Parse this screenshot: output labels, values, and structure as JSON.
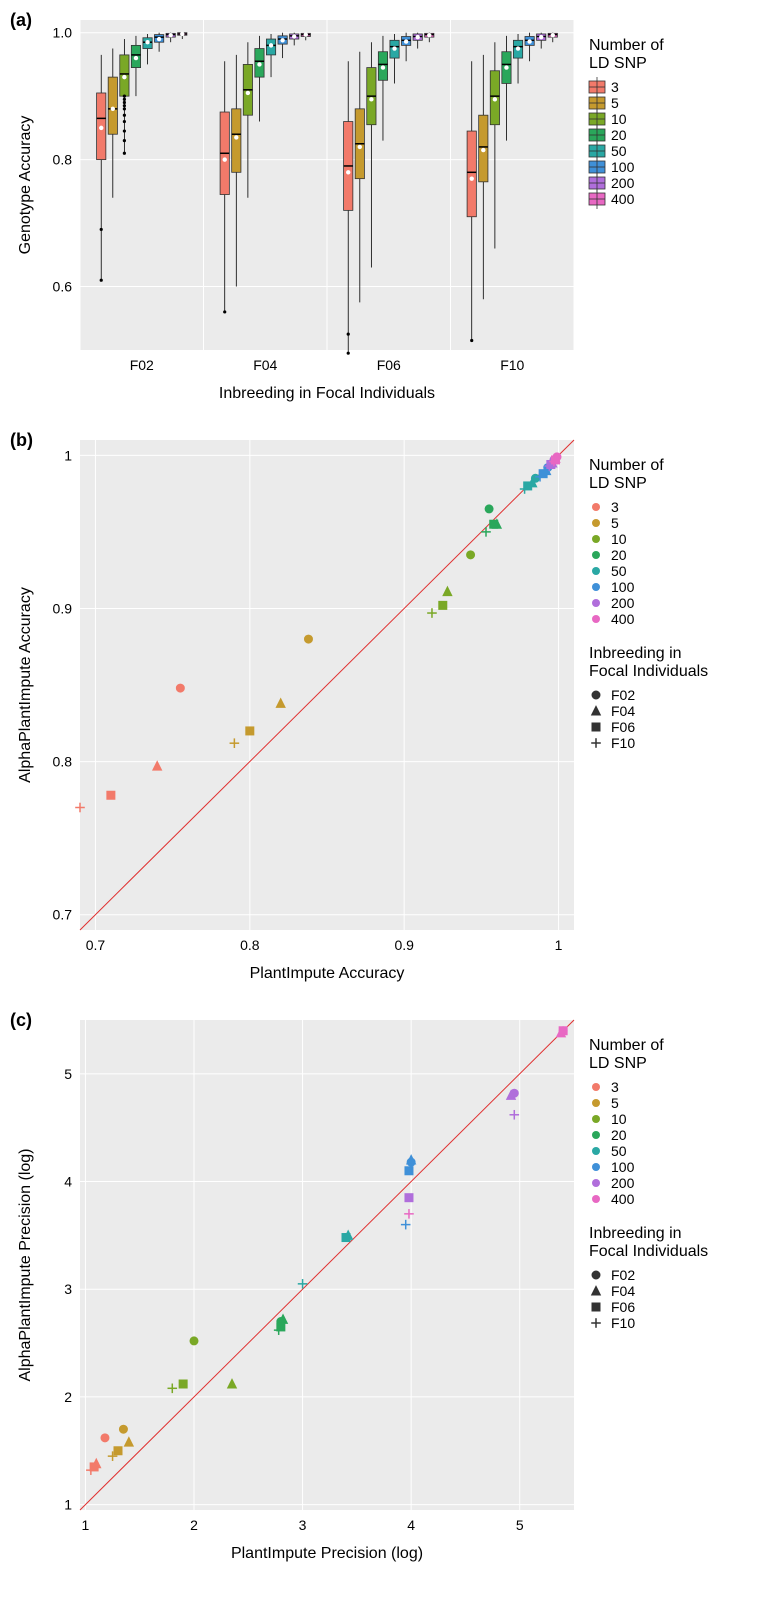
{
  "colors": {
    "snp": {
      "3": "#f27a6a",
      "5": "#c59a2e",
      "10": "#7aa826",
      "20": "#2aa75b",
      "50": "#2aa8a4",
      "100": "#3f90d8",
      "200": "#b06edb",
      "400": "#e868c3"
    },
    "plot_bg": "#ebebeb",
    "grid": "#ffffff",
    "text": "#333333",
    "diag": "#e03030"
  },
  "legend_snp_title": "Number of\nLD SNP",
  "legend_snp_labels": [
    "3",
    "5",
    "10",
    "20",
    "50",
    "100",
    "200",
    "400"
  ],
  "legend_shape_title": "Inbreeding in\nFocal Individuals",
  "legend_shape_labels": [
    "F02",
    "F04",
    "F06",
    "F10"
  ],
  "panel_a": {
    "label": "(a)",
    "x_title": "Inbreeding in Focal Individuals",
    "y_title": "Genotype Accuracy",
    "x_categories": [
      "F02",
      "F04",
      "F06",
      "F10"
    ],
    "ylim": [
      0.5,
      1.02
    ],
    "yticks": [
      0.6,
      0.8,
      1.0
    ],
    "groups": {
      "F02": {
        "3": {
          "low": 0.61,
          "q1": 0.8,
          "med": 0.865,
          "q3": 0.905,
          "high": 0.965,
          "mean": 0.85,
          "out": [
            0.61,
            0.69
          ]
        },
        "5": {
          "low": 0.74,
          "q1": 0.84,
          "med": 0.88,
          "q3": 0.93,
          "high": 0.975,
          "mean": 0.88,
          "out": []
        },
        "10": {
          "low": 0.81,
          "q1": 0.9,
          "med": 0.935,
          "q3": 0.965,
          "high": 0.99,
          "mean": 0.93,
          "out": [
            0.81,
            0.83,
            0.845,
            0.86,
            0.87,
            0.88,
            0.885,
            0.89,
            0.895,
            0.9
          ]
        },
        "20": {
          "low": 0.9,
          "q1": 0.945,
          "med": 0.965,
          "q3": 0.98,
          "high": 0.995,
          "mean": 0.96,
          "out": []
        },
        "50": {
          "low": 0.95,
          "q1": 0.975,
          "med": 0.985,
          "q3": 0.992,
          "high": 0.998,
          "mean": 0.985,
          "out": []
        },
        "100": {
          "low": 0.97,
          "q1": 0.985,
          "med": 0.993,
          "q3": 0.997,
          "high": 1.0,
          "mean": 0.99,
          "out": []
        },
        "200": {
          "low": 0.985,
          "q1": 0.993,
          "med": 0.997,
          "q3": 0.999,
          "high": 1.0,
          "mean": 0.996,
          "out": []
        },
        "400": {
          "low": 0.99,
          "q1": 0.996,
          "med": 0.998,
          "q3": 1.0,
          "high": 1.0,
          "mean": 0.998,
          "out": []
        }
      },
      "F04": {
        "3": {
          "low": 0.56,
          "q1": 0.745,
          "med": 0.81,
          "q3": 0.875,
          "high": 0.955,
          "mean": 0.8,
          "out": [
            0.56
          ]
        },
        "5": {
          "low": 0.6,
          "q1": 0.78,
          "med": 0.84,
          "q3": 0.88,
          "high": 0.965,
          "mean": 0.835,
          "out": []
        },
        "10": {
          "low": 0.74,
          "q1": 0.87,
          "med": 0.91,
          "q3": 0.95,
          "high": 0.985,
          "mean": 0.905,
          "out": []
        },
        "20": {
          "low": 0.86,
          "q1": 0.93,
          "med": 0.955,
          "q3": 0.975,
          "high": 0.995,
          "mean": 0.95,
          "out": []
        },
        "50": {
          "low": 0.93,
          "q1": 0.965,
          "med": 0.98,
          "q3": 0.99,
          "high": 0.998,
          "mean": 0.98,
          "out": []
        },
        "100": {
          "low": 0.96,
          "q1": 0.982,
          "med": 0.99,
          "q3": 0.995,
          "high": 1.0,
          "mean": 0.988,
          "out": []
        },
        "200": {
          "low": 0.98,
          "q1": 0.99,
          "med": 0.995,
          "q3": 0.998,
          "high": 1.0,
          "mean": 0.994,
          "out": []
        },
        "400": {
          "low": 0.988,
          "q1": 0.994,
          "med": 0.997,
          "q3": 0.999,
          "high": 1.0,
          "mean": 0.997,
          "out": []
        }
      },
      "F06": {
        "3": {
          "low": 0.495,
          "q1": 0.72,
          "med": 0.79,
          "q3": 0.86,
          "high": 0.955,
          "mean": 0.78,
          "out": [
            0.495,
            0.525
          ]
        },
        "5": {
          "low": 0.575,
          "q1": 0.77,
          "med": 0.825,
          "q3": 0.88,
          "high": 0.97,
          "mean": 0.82,
          "out": []
        },
        "10": {
          "low": 0.63,
          "q1": 0.855,
          "med": 0.9,
          "q3": 0.945,
          "high": 0.985,
          "mean": 0.895,
          "out": []
        },
        "20": {
          "low": 0.83,
          "q1": 0.925,
          "med": 0.95,
          "q3": 0.97,
          "high": 0.995,
          "mean": 0.945,
          "out": []
        },
        "50": {
          "low": 0.92,
          "q1": 0.96,
          "med": 0.978,
          "q3": 0.988,
          "high": 0.998,
          "mean": 0.975,
          "out": []
        },
        "100": {
          "low": 0.955,
          "q1": 0.98,
          "med": 0.988,
          "q3": 0.994,
          "high": 1.0,
          "mean": 0.986,
          "out": []
        },
        "200": {
          "low": 0.975,
          "q1": 0.988,
          "med": 0.994,
          "q3": 0.998,
          "high": 1.0,
          "mean": 0.993,
          "out": []
        },
        "400": {
          "low": 0.985,
          "q1": 0.993,
          "med": 0.997,
          "q3": 0.999,
          "high": 1.0,
          "mean": 0.996,
          "out": []
        }
      },
      "F10": {
        "3": {
          "low": 0.515,
          "q1": 0.71,
          "med": 0.78,
          "q3": 0.845,
          "high": 0.955,
          "mean": 0.77,
          "out": [
            0.515
          ]
        },
        "5": {
          "low": 0.58,
          "q1": 0.765,
          "med": 0.82,
          "q3": 0.87,
          "high": 0.965,
          "mean": 0.815,
          "out": []
        },
        "10": {
          "low": 0.66,
          "q1": 0.855,
          "med": 0.9,
          "q3": 0.94,
          "high": 0.985,
          "mean": 0.895,
          "out": []
        },
        "20": {
          "low": 0.83,
          "q1": 0.92,
          "med": 0.95,
          "q3": 0.97,
          "high": 0.995,
          "mean": 0.945,
          "out": []
        },
        "50": {
          "low": 0.92,
          "q1": 0.96,
          "med": 0.978,
          "q3": 0.988,
          "high": 0.998,
          "mean": 0.975,
          "out": []
        },
        "100": {
          "low": 0.955,
          "q1": 0.98,
          "med": 0.988,
          "q3": 0.994,
          "high": 1.0,
          "mean": 0.986,
          "out": []
        },
        "200": {
          "low": 0.975,
          "q1": 0.988,
          "med": 0.994,
          "q3": 0.998,
          "high": 1.0,
          "mean": 0.993,
          "out": []
        },
        "400": {
          "low": 0.985,
          "q1": 0.993,
          "med": 0.997,
          "q3": 0.999,
          "high": 1.0,
          "mean": 0.996,
          "out": []
        }
      }
    }
  },
  "panel_b": {
    "label": "(b)",
    "x_title": "PlantImpute Accuracy",
    "y_title": "AlphaPlantImpute Accuracy",
    "xlim": [
      0.69,
      1.01
    ],
    "ylim": [
      0.69,
      1.01
    ],
    "xticks": [
      0.7,
      0.8,
      0.9,
      1.0
    ],
    "yticks": [
      0.7,
      0.8,
      0.9,
      1.0
    ],
    "points": [
      {
        "x": 0.755,
        "y": 0.848,
        "snp": "3",
        "shape": "F02"
      },
      {
        "x": 0.74,
        "y": 0.797,
        "snp": "3",
        "shape": "F04"
      },
      {
        "x": 0.71,
        "y": 0.778,
        "snp": "3",
        "shape": "F06"
      },
      {
        "x": 0.69,
        "y": 0.77,
        "snp": "3",
        "shape": "F10"
      },
      {
        "x": 0.838,
        "y": 0.88,
        "snp": "5",
        "shape": "F02"
      },
      {
        "x": 0.82,
        "y": 0.838,
        "snp": "5",
        "shape": "F04"
      },
      {
        "x": 0.8,
        "y": 0.82,
        "snp": "5",
        "shape": "F06"
      },
      {
        "x": 0.79,
        "y": 0.812,
        "snp": "5",
        "shape": "F10"
      },
      {
        "x": 0.943,
        "y": 0.935,
        "snp": "10",
        "shape": "F02"
      },
      {
        "x": 0.928,
        "y": 0.911,
        "snp": "10",
        "shape": "F04"
      },
      {
        "x": 0.925,
        "y": 0.902,
        "snp": "10",
        "shape": "F06"
      },
      {
        "x": 0.918,
        "y": 0.897,
        "snp": "10",
        "shape": "F10"
      },
      {
        "x": 0.955,
        "y": 0.965,
        "snp": "20",
        "shape": "F02"
      },
      {
        "x": 0.96,
        "y": 0.955,
        "snp": "20",
        "shape": "F04"
      },
      {
        "x": 0.958,
        "y": 0.955,
        "snp": "20",
        "shape": "F06"
      },
      {
        "x": 0.953,
        "y": 0.95,
        "snp": "20",
        "shape": "F10"
      },
      {
        "x": 0.985,
        "y": 0.985,
        "snp": "50",
        "shape": "F02"
      },
      {
        "x": 0.983,
        "y": 0.982,
        "snp": "50",
        "shape": "F04"
      },
      {
        "x": 0.98,
        "y": 0.98,
        "snp": "50",
        "shape": "F06"
      },
      {
        "x": 0.978,
        "y": 0.978,
        "snp": "50",
        "shape": "F10"
      },
      {
        "x": 0.993,
        "y": 0.992,
        "snp": "100",
        "shape": "F02"
      },
      {
        "x": 0.992,
        "y": 0.99,
        "snp": "100",
        "shape": "F04"
      },
      {
        "x": 0.99,
        "y": 0.988,
        "snp": "100",
        "shape": "F06"
      },
      {
        "x": 0.988,
        "y": 0.986,
        "snp": "100",
        "shape": "F10"
      },
      {
        "x": 0.997,
        "y": 0.997,
        "snp": "200",
        "shape": "F02"
      },
      {
        "x": 0.996,
        "y": 0.995,
        "snp": "200",
        "shape": "F04"
      },
      {
        "x": 0.995,
        "y": 0.994,
        "snp": "200",
        "shape": "F06"
      },
      {
        "x": 0.994,
        "y": 0.993,
        "snp": "200",
        "shape": "F10"
      },
      {
        "x": 0.999,
        "y": 0.999,
        "snp": "400",
        "shape": "F02"
      },
      {
        "x": 0.998,
        "y": 0.998,
        "snp": "400",
        "shape": "F04"
      },
      {
        "x": 0.998,
        "y": 0.997,
        "snp": "400",
        "shape": "F06"
      },
      {
        "x": 0.997,
        "y": 0.996,
        "snp": "400",
        "shape": "F10"
      }
    ]
  },
  "panel_c": {
    "label": "(c)",
    "x_title": "PlantImpute Precision (log)",
    "y_title": "AlphaPlantImpute Precision (log)",
    "xlim": [
      0.95,
      5.5
    ],
    "ylim": [
      0.95,
      5.5
    ],
    "xticks": [
      1,
      2,
      3,
      4,
      5
    ],
    "yticks": [
      1,
      2,
      3,
      4,
      5
    ],
    "points": [
      {
        "x": 1.18,
        "y": 1.62,
        "snp": "3",
        "shape": "F02"
      },
      {
        "x": 1.1,
        "y": 1.38,
        "snp": "3",
        "shape": "F04"
      },
      {
        "x": 1.08,
        "y": 1.35,
        "snp": "3",
        "shape": "F06"
      },
      {
        "x": 1.05,
        "y": 1.32,
        "snp": "3",
        "shape": "F10"
      },
      {
        "x": 1.35,
        "y": 1.7,
        "snp": "5",
        "shape": "F02"
      },
      {
        "x": 1.4,
        "y": 1.58,
        "snp": "5",
        "shape": "F04"
      },
      {
        "x": 1.3,
        "y": 1.5,
        "snp": "5",
        "shape": "F06"
      },
      {
        "x": 1.25,
        "y": 1.45,
        "snp": "5",
        "shape": "F10"
      },
      {
        "x": 2.0,
        "y": 2.52,
        "snp": "10",
        "shape": "F02"
      },
      {
        "x": 2.35,
        "y": 2.12,
        "snp": "10",
        "shape": "F04"
      },
      {
        "x": 1.9,
        "y": 2.12,
        "snp": "10",
        "shape": "F06"
      },
      {
        "x": 1.8,
        "y": 2.08,
        "snp": "10",
        "shape": "F10"
      },
      {
        "x": 2.8,
        "y": 2.7,
        "snp": "20",
        "shape": "F02"
      },
      {
        "x": 2.82,
        "y": 2.72,
        "snp": "20",
        "shape": "F04"
      },
      {
        "x": 2.8,
        "y": 2.65,
        "snp": "20",
        "shape": "F06"
      },
      {
        "x": 2.78,
        "y": 2.62,
        "snp": "20",
        "shape": "F10"
      },
      {
        "x": 3.4,
        "y": 3.48,
        "snp": "50",
        "shape": "F02"
      },
      {
        "x": 3.42,
        "y": 3.5,
        "snp": "50",
        "shape": "F04"
      },
      {
        "x": 3.4,
        "y": 3.48,
        "snp": "50",
        "shape": "F06"
      },
      {
        "x": 3.0,
        "y": 3.05,
        "snp": "50",
        "shape": "F10"
      },
      {
        "x": 4.0,
        "y": 4.18,
        "snp": "100",
        "shape": "F02"
      },
      {
        "x": 4.0,
        "y": 4.2,
        "snp": "100",
        "shape": "F04"
      },
      {
        "x": 3.98,
        "y": 4.1,
        "snp": "100",
        "shape": "F06"
      },
      {
        "x": 3.95,
        "y": 3.6,
        "snp": "100",
        "shape": "F10"
      },
      {
        "x": 4.95,
        "y": 4.82,
        "snp": "200",
        "shape": "F02"
      },
      {
        "x": 4.92,
        "y": 4.8,
        "snp": "200",
        "shape": "F04"
      },
      {
        "x": 3.98,
        "y": 3.85,
        "snp": "200",
        "shape": "F06"
      },
      {
        "x": 4.95,
        "y": 4.62,
        "snp": "200",
        "shape": "F10"
      },
      {
        "x": 5.4,
        "y": 5.4,
        "snp": "400",
        "shape": "F02"
      },
      {
        "x": 5.38,
        "y": 5.38,
        "snp": "400",
        "shape": "F04"
      },
      {
        "x": 5.4,
        "y": 5.4,
        "snp": "400",
        "shape": "F06"
      },
      {
        "x": 3.98,
        "y": 3.7,
        "snp": "400",
        "shape": "F10"
      }
    ]
  }
}
